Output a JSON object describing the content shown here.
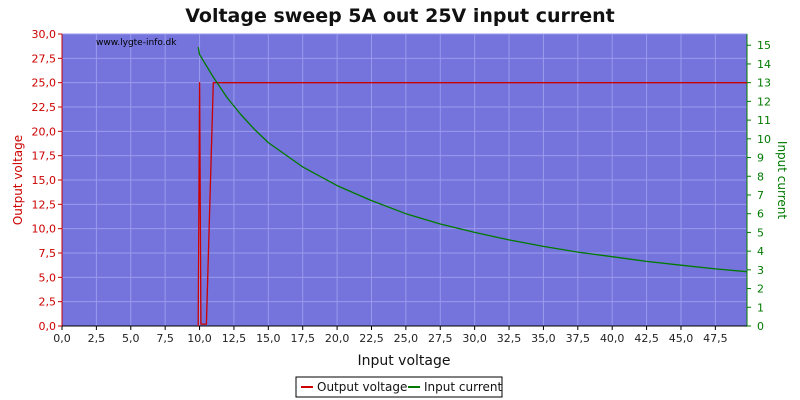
{
  "chart_data": {
    "type": "line",
    "title": "Voltage sweep 5A out 25V input current",
    "xlabel": "Input voltage",
    "ylabel_left": "Output voltage",
    "ylabel_right": "Input current",
    "watermark": "www.lygte-info.dk",
    "xlim": [
      0,
      49.8
    ],
    "ylim_left": [
      0,
      30
    ],
    "ylim_right": [
      0,
      15.6
    ],
    "x_ticks": [
      "0,0",
      "2,5",
      "5,0",
      "7,5",
      "10,0",
      "12,5",
      "15,0",
      "17,5",
      "20,0",
      "22,5",
      "25,0",
      "27,5",
      "30,0",
      "32,5",
      "35,0",
      "37,5",
      "40,0",
      "42,5",
      "45,0",
      "47,5"
    ],
    "y_left_ticks": [
      "0,0",
      "2,5",
      "5,0",
      "7,5",
      "10,0",
      "12,5",
      "15,0",
      "17,5",
      "20,0",
      "22,5",
      "25,0",
      "27,5",
      "30,0"
    ],
    "y_right_ticks": [
      "0",
      "1",
      "2",
      "3",
      "4",
      "5",
      "6",
      "7",
      "8",
      "9",
      "10",
      "11",
      "12",
      "13",
      "14",
      "15"
    ],
    "grid": true,
    "legend": "bottom-center",
    "colors": {
      "plot_background": "#7474dc",
      "grid": "#9a9aee",
      "output_voltage": "#cc0000",
      "input_current": "#007a00",
      "left_axis": "#cc0000",
      "right_axis": "#007a00"
    },
    "series": [
      {
        "name": "Output voltage",
        "axis": "left",
        "x": [
          9.9,
          10.0,
          10.1,
          10.2,
          10.3,
          10.4,
          10.5,
          11,
          15,
          20,
          25,
          30,
          35,
          40,
          45,
          49.8
        ],
        "values": [
          0,
          25,
          0.2,
          0.2,
          0.2,
          0.2,
          0.2,
          25,
          25,
          25,
          25,
          25,
          25,
          25,
          25,
          25
        ]
      },
      {
        "name": "Input current",
        "axis": "right",
        "x": [
          9.9,
          9.95,
          10,
          10.5,
          11,
          12,
          13,
          14,
          15,
          17.5,
          20,
          22.5,
          25,
          27.5,
          30,
          32.5,
          35,
          37.5,
          40,
          42.5,
          45,
          47.5,
          49.8
        ],
        "values": [
          14.9,
          14.7,
          14.5,
          13.9,
          13.3,
          12.2,
          11.3,
          10.5,
          9.8,
          8.5,
          7.5,
          6.7,
          6.0,
          5.45,
          5.0,
          4.6,
          4.25,
          3.95,
          3.7,
          3.45,
          3.25,
          3.05,
          2.9
        ]
      }
    ]
  }
}
